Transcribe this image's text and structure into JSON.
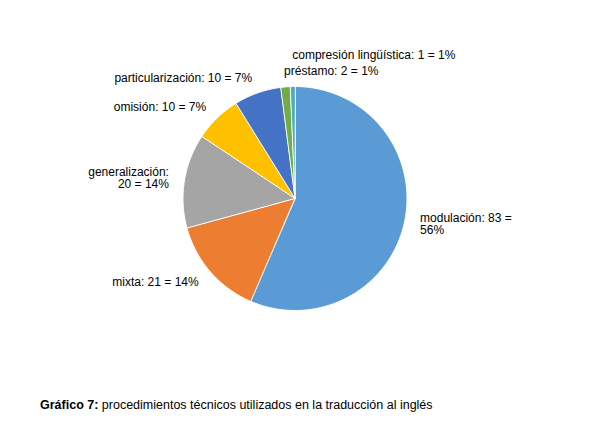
{
  "chart_data": {
    "type": "pie",
    "caption": "Gráfico 7: procedimientos técnicos utilizados en la traducción al inglés",
    "categories": [
      "modulación",
      "mixta",
      "generalización",
      "omisión",
      "particularización",
      "préstamo",
      "compresión lingüística"
    ],
    "values": [
      83,
      21,
      20,
      10,
      10,
      2,
      1
    ],
    "colors": [
      "#5B9BD5",
      "#ED7D31",
      "#A5A5A5",
      "#FFC000",
      "#4472C4",
      "#70AD47",
      "#4BACC6"
    ],
    "data_labels": true,
    "value_labels": [
      "modulación: 83 =\n56%",
      "mixta: 21 = 14%",
      "generalización:\n20 = 14%",
      "omisión: 10 = 7%",
      "particularización: 10 = 7%",
      "préstamo: 2 = 1%",
      "compresión lingüística: 1 = 1%"
    ]
  }
}
